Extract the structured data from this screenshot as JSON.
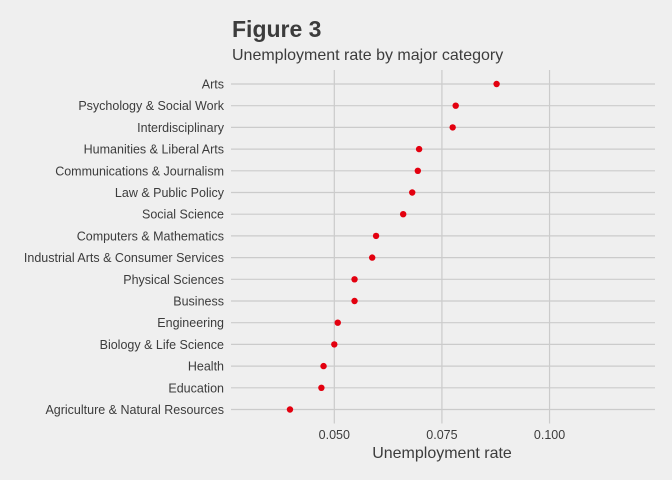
{
  "chart_data": {
    "type": "scatter",
    "title": "Figure 3",
    "subtitle": "Unemployment rate by major category",
    "xlabel": "Unemployment rate",
    "ylabel": "",
    "xlim": [
      0.026,
      0.1245
    ],
    "xticks": [
      0.05,
      0.075,
      0.1
    ],
    "xtick_labels": [
      "0.050",
      "0.075",
      "0.100"
    ],
    "grid": true,
    "point_color": "#e3000f",
    "categories": [
      "Arts",
      "Psychology & Social Work",
      "Interdisciplinary",
      "Humanities & Liberal Arts",
      "Communications & Journalism",
      "Law & Public Policy",
      "Social Science",
      "Computers & Mathematics",
      "Industrial Arts & Consumer Services",
      "Physical Sciences",
      "Business",
      "Engineering",
      "Biology & Life Science",
      "Health",
      "Education",
      "Agriculture & Natural Resources"
    ],
    "values": [
      0.0877,
      0.0782,
      0.0775,
      0.0697,
      0.0694,
      0.0681,
      0.066,
      0.0597,
      0.0588,
      0.0547,
      0.0547,
      0.0508,
      0.05,
      0.0475,
      0.047,
      0.0397
    ]
  }
}
